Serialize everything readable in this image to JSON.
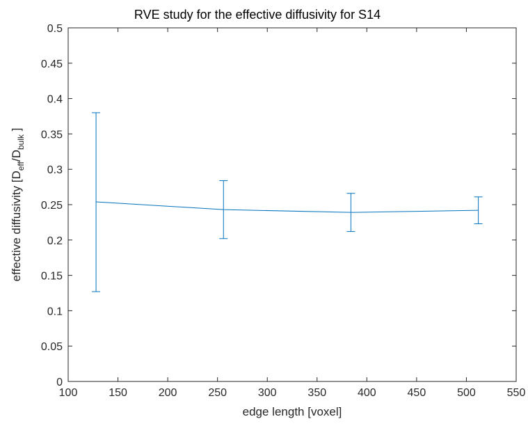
{
  "chart_data": {
    "type": "line",
    "title": "RVE study for the effective diffusivity for S14",
    "xlabel": "edge length [voxel]",
    "ylabel": {
      "prefix": "effective diffusivity [D",
      "sub1": "eff",
      "mid": "/D",
      "sub2": "bulk",
      "suffix": " ]"
    },
    "xlim": [
      100,
      550
    ],
    "ylim": [
      0,
      0.5
    ],
    "xticks": [
      100,
      150,
      200,
      250,
      300,
      350,
      400,
      450,
      500,
      550
    ],
    "yticks": [
      0,
      0.05,
      0.1,
      0.15,
      0.2,
      0.25,
      0.3,
      0.35,
      0.4,
      0.45,
      0.5
    ],
    "grid": false,
    "series": [
      {
        "x": [
          128,
          256,
          384,
          512
        ],
        "y": [
          0.254,
          0.243,
          0.239,
          0.242
        ],
        "error_lower": [
          0.127,
          0.202,
          0.212,
          0.223
        ],
        "error_upper": [
          0.38,
          0.284,
          0.266,
          0.261
        ],
        "color": "#0072BD"
      }
    ]
  }
}
